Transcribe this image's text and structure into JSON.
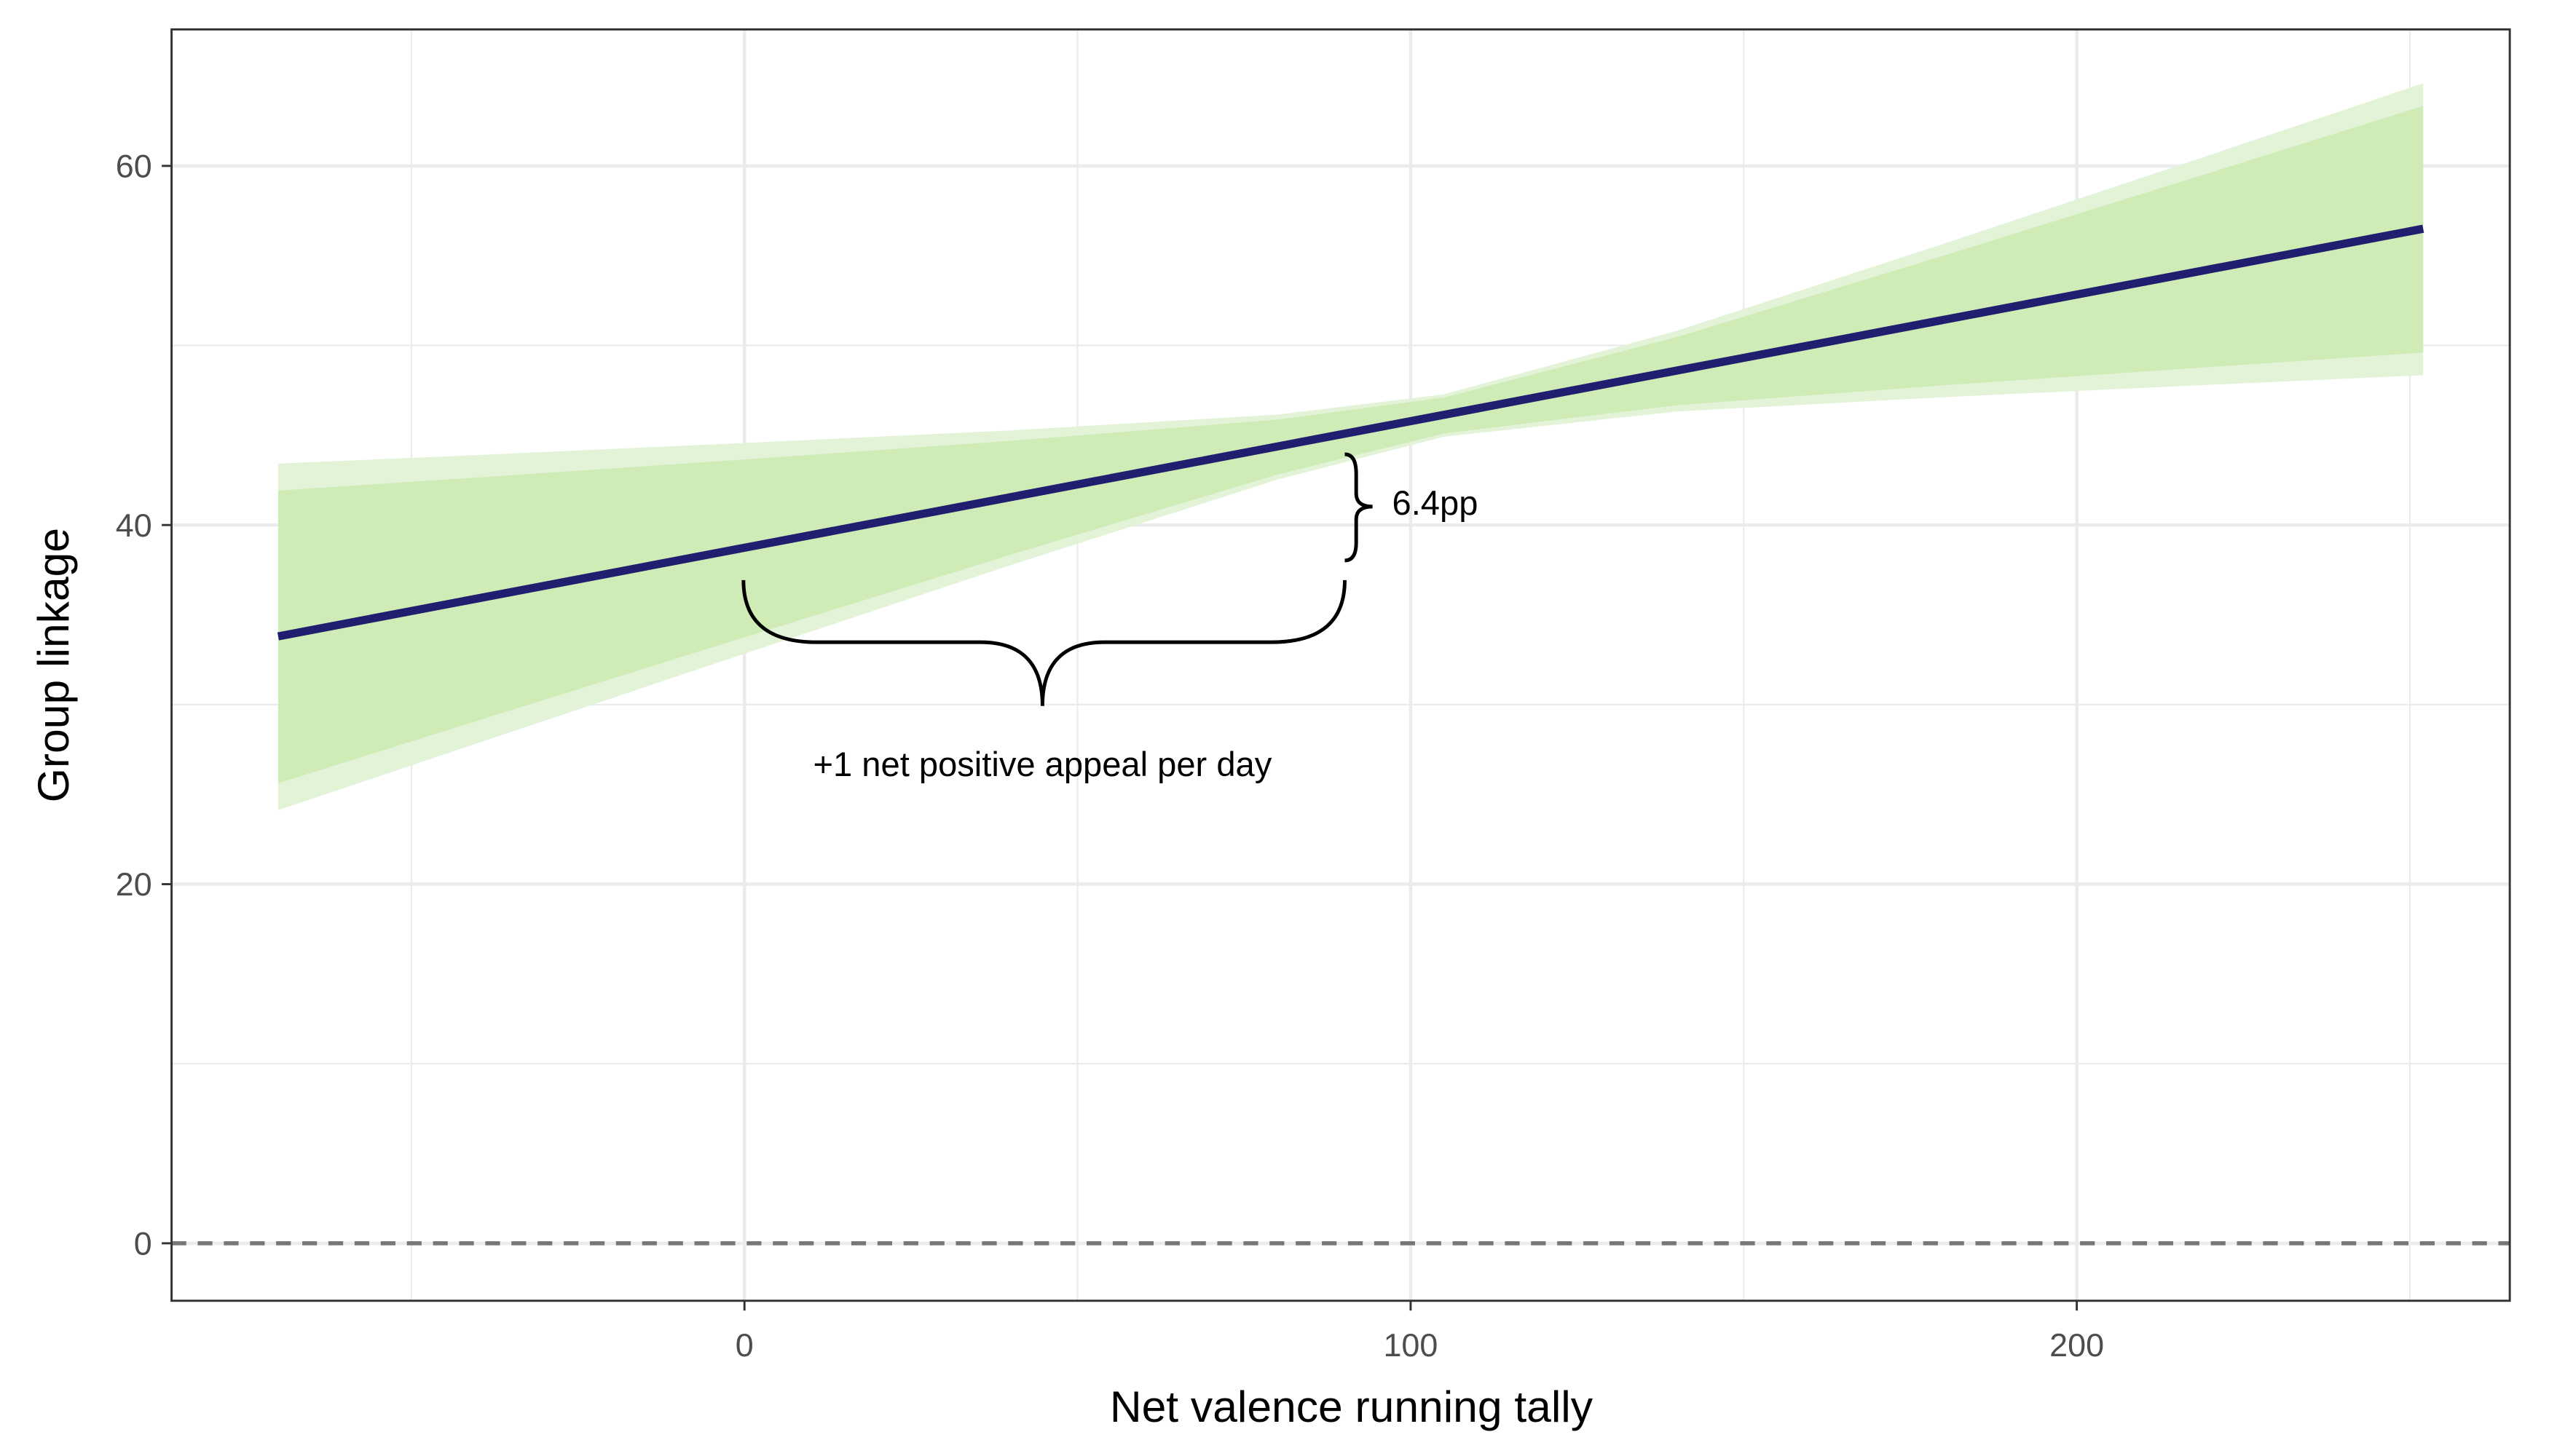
{
  "chart_data": {
    "type": "line",
    "title": "",
    "xlabel": "Net valence running tally",
    "ylabel": "Group linkage",
    "xlim": [
      -86,
      265
    ],
    "ylim": [
      -3.2,
      67.6
    ],
    "x_ticks": [
      0,
      100,
      200
    ],
    "y_ticks": [
      0,
      20,
      40,
      60
    ],
    "x_tick_labels": [
      "0",
      "100",
      "200"
    ],
    "y_tick_labels": [
      "0",
      "20",
      "40",
      "60"
    ],
    "grid": true,
    "reference_line": {
      "y": 0,
      "style": "dashed"
    },
    "fit_line": {
      "x": [
        -70,
        252
      ],
      "y": [
        33.8,
        56.5
      ]
    },
    "bands": {
      "x": [
        -70,
        -40,
        0,
        40,
        80,
        105,
        140,
        180,
        220,
        252
      ],
      "outer_lower": [
        24.12,
        27.86,
        32.83,
        37.77,
        42.53,
        44.92,
        46.32,
        47.12,
        47.81,
        48.34
      ],
      "outer_upper": [
        43.42,
        43.9,
        44.57,
        45.27,
        46.15,
        47.28,
        50.82,
        55.66,
        60.61,
        64.6
      ],
      "inner_lower": [
        25.62,
        29.11,
        33.75,
        38.35,
        42.81,
        45.1,
        46.67,
        47.78,
        48.8,
        49.6
      ],
      "inner_upper": [
        41.92,
        42.65,
        43.65,
        44.69,
        45.87,
        47.1,
        50.47,
        55.0,
        59.62,
        63.34
      ]
    },
    "annotations": {
      "horizontal_brace": {
        "x_from": 0,
        "x_to": 90,
        "label": "+1 net positive appeal per day"
      },
      "vertical_brace": {
        "label": "6.4pp"
      }
    },
    "colors": {
      "line": "#201e6e",
      "inner_band": "#cdebb5",
      "outer_band": "#e3f3d8",
      "grid": "#ebebeb",
      "reference": "#777777"
    }
  }
}
